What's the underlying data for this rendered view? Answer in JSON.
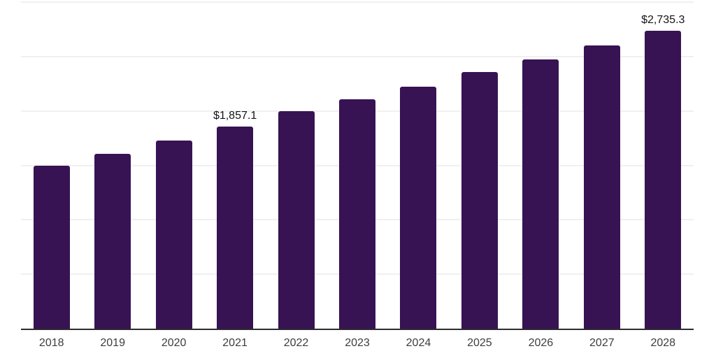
{
  "chart_data": {
    "type": "bar",
    "title": "",
    "xlabel": "",
    "ylabel": "",
    "categories": [
      "2018",
      "2019",
      "2020",
      "2021",
      "2022",
      "2023",
      "2024",
      "2025",
      "2026",
      "2027",
      "2028"
    ],
    "values": [
      1495,
      1605,
      1730,
      1857.1,
      1995,
      2110,
      2225,
      2355,
      2475,
      2605,
      2735.3
    ],
    "labeled_values": [
      {
        "index": 3,
        "category": "2021",
        "text": "$1,857.1"
      },
      {
        "index": 10,
        "category": "2028",
        "text": "$2,735.3"
      }
    ],
    "ylim": [
      0,
      3000
    ],
    "gridline_step": 500,
    "grid": true,
    "legend": "none"
  },
  "colors": {
    "background": "#ffffff",
    "bar": "#371353",
    "axis_line": "#2d2d2d",
    "gridline": "#f0f0f0",
    "tick_label": "#3d3d3d",
    "value_label": "#141414"
  }
}
